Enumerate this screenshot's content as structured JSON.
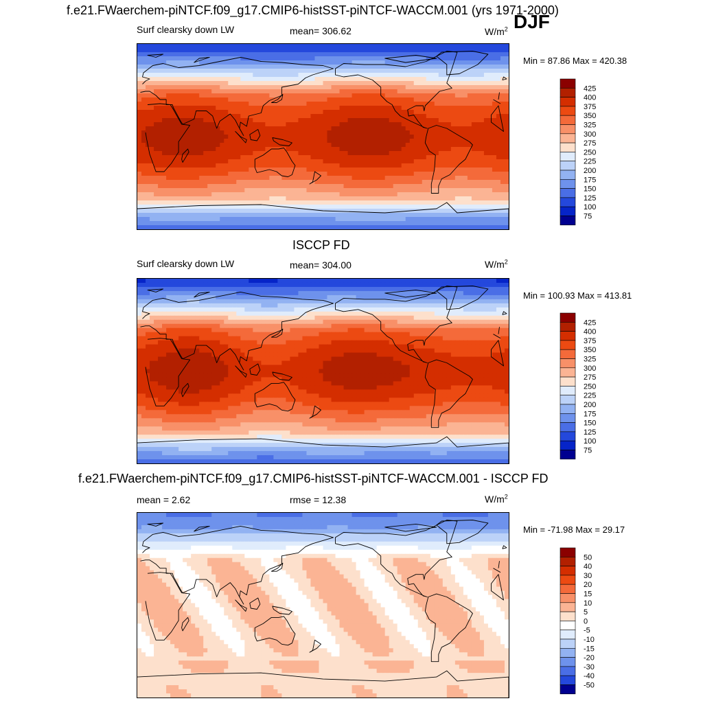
{
  "season": "DJF",
  "panels": [
    {
      "title": "f.e21.FWaerchem-piNTCF.f09_g17.CMIP6-histSST-piNTCF-WACCM.001 (yrs 1971-2000)",
      "left_label": "Surf clearsky down LW",
      "center_label": "mean= 306.62",
      "units": "W/m",
      "units_sup": "2",
      "minmax": "Min =  87.86 Max = 420.38",
      "type": "model",
      "colorbar": {
        "labels": [
          "425",
          "400",
          "375",
          "350",
          "325",
          "300",
          "275",
          "250",
          "225",
          "200",
          "175",
          "150",
          "125",
          "100",
          "75"
        ],
        "colors": [
          "#8b0000",
          "#b22000",
          "#d42e00",
          "#ec4a12",
          "#f46a3a",
          "#f89068",
          "#fbb494",
          "#fde0cc",
          "#e0ecfc",
          "#bcd2f8",
          "#92b2f2",
          "#6e92ec",
          "#4a6ee6",
          "#2448dc",
          "#0624c8",
          "#000090"
        ]
      }
    },
    {
      "title": "ISCCP FD",
      "left_label": "Surf clearsky down LW",
      "center_label": "mean= 304.00",
      "units": "W/m",
      "units_sup": "2",
      "minmax": "Min = 100.93 Max = 413.81",
      "type": "obs",
      "colorbar": {
        "labels": [
          "425",
          "400",
          "375",
          "350",
          "325",
          "300",
          "275",
          "250",
          "225",
          "200",
          "175",
          "150",
          "125",
          "100",
          "75"
        ],
        "colors": [
          "#8b0000",
          "#b22000",
          "#d42e00",
          "#ec4a12",
          "#f46a3a",
          "#f89068",
          "#fbb494",
          "#fde0cc",
          "#e0ecfc",
          "#bcd2f8",
          "#92b2f2",
          "#6e92ec",
          "#4a6ee6",
          "#2448dc",
          "#0624c8",
          "#000090"
        ]
      }
    },
    {
      "title": "f.e21.FWaerchem-piNTCF.f09_g17.CMIP6-histSST-piNTCF-WACCM.001 - ISCCP FD",
      "left_label": "mean =   2.62",
      "center_label": "rmse =  12.38",
      "units": "W/m",
      "units_sup": "2",
      "minmax": "Min = -71.98 Max =  29.17",
      "type": "diff",
      "colorbar": {
        "labels": [
          "50",
          "40",
          "30",
          "20",
          "15",
          "10",
          "5",
          "0",
          "-5",
          "-10",
          "-15",
          "-20",
          "-30",
          "-40",
          "-50"
        ],
        "colors": [
          "#8b0000",
          "#b22000",
          "#d42e00",
          "#ec4a12",
          "#f46a3a",
          "#f89068",
          "#fbb494",
          "#fde0cc",
          "#ffffff",
          "#e0ecfc",
          "#bcd2f8",
          "#92b2f2",
          "#6e92ec",
          "#4a6ee6",
          "#2448dc",
          "#000090"
        ]
      }
    }
  ]
}
